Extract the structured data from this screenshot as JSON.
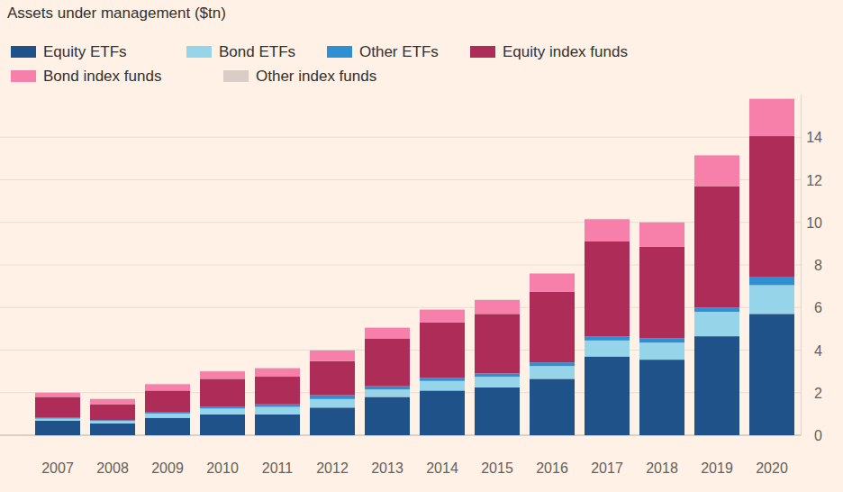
{
  "chart_data": {
    "type": "bar",
    "title": "Assets under management ($tn)",
    "categories": [
      "2007",
      "2008",
      "2009",
      "2010",
      "2011",
      "2012",
      "2013",
      "2014",
      "2015",
      "2016",
      "2017",
      "2018",
      "2019",
      "2020"
    ],
    "stacked": true,
    "grid": true,
    "legend": "top-left",
    "ylim": [
      0,
      16
    ],
    "yticks": [
      0,
      2,
      4,
      6,
      8,
      10,
      12,
      14
    ],
    "series": [
      {
        "name": "Equity ETFs",
        "color": "#1f5289",
        "values": [
          0.68,
          0.55,
          0.82,
          0.98,
          0.98,
          1.3,
          1.8,
          2.1,
          2.25,
          2.65,
          3.7,
          3.55,
          4.65,
          5.7
        ]
      },
      {
        "name": "Bond ETFs",
        "color": "#96d4ea",
        "values": [
          0.1,
          0.12,
          0.2,
          0.27,
          0.35,
          0.4,
          0.35,
          0.45,
          0.5,
          0.6,
          0.75,
          0.8,
          1.15,
          1.35
        ]
      },
      {
        "name": "Other ETFs",
        "color": "#2e8fd2",
        "values": [
          0.04,
          0.04,
          0.08,
          0.1,
          0.12,
          0.18,
          0.15,
          0.15,
          0.15,
          0.17,
          0.2,
          0.2,
          0.2,
          0.4
        ]
      },
      {
        "name": "Equity index funds",
        "color": "#ae2c58",
        "values": [
          0.98,
          0.75,
          1.0,
          1.3,
          1.3,
          1.6,
          2.25,
          2.6,
          2.8,
          3.33,
          4.45,
          4.3,
          5.7,
          6.6
        ]
      },
      {
        "name": "Bond index funds",
        "color": "#f780aa",
        "values": [
          0.2,
          0.24,
          0.3,
          0.35,
          0.4,
          0.5,
          0.5,
          0.6,
          0.65,
          0.85,
          1.05,
          1.15,
          1.45,
          1.75
        ]
      },
      {
        "name": "Other index funds",
        "color": "#d9cdc6",
        "values": [
          0.02,
          0.02,
          0.02,
          0.02,
          0.02,
          0.02,
          0.02,
          0.02,
          0.02,
          0.02,
          0.02,
          0.02,
          0.02,
          0.02
        ]
      }
    ]
  }
}
